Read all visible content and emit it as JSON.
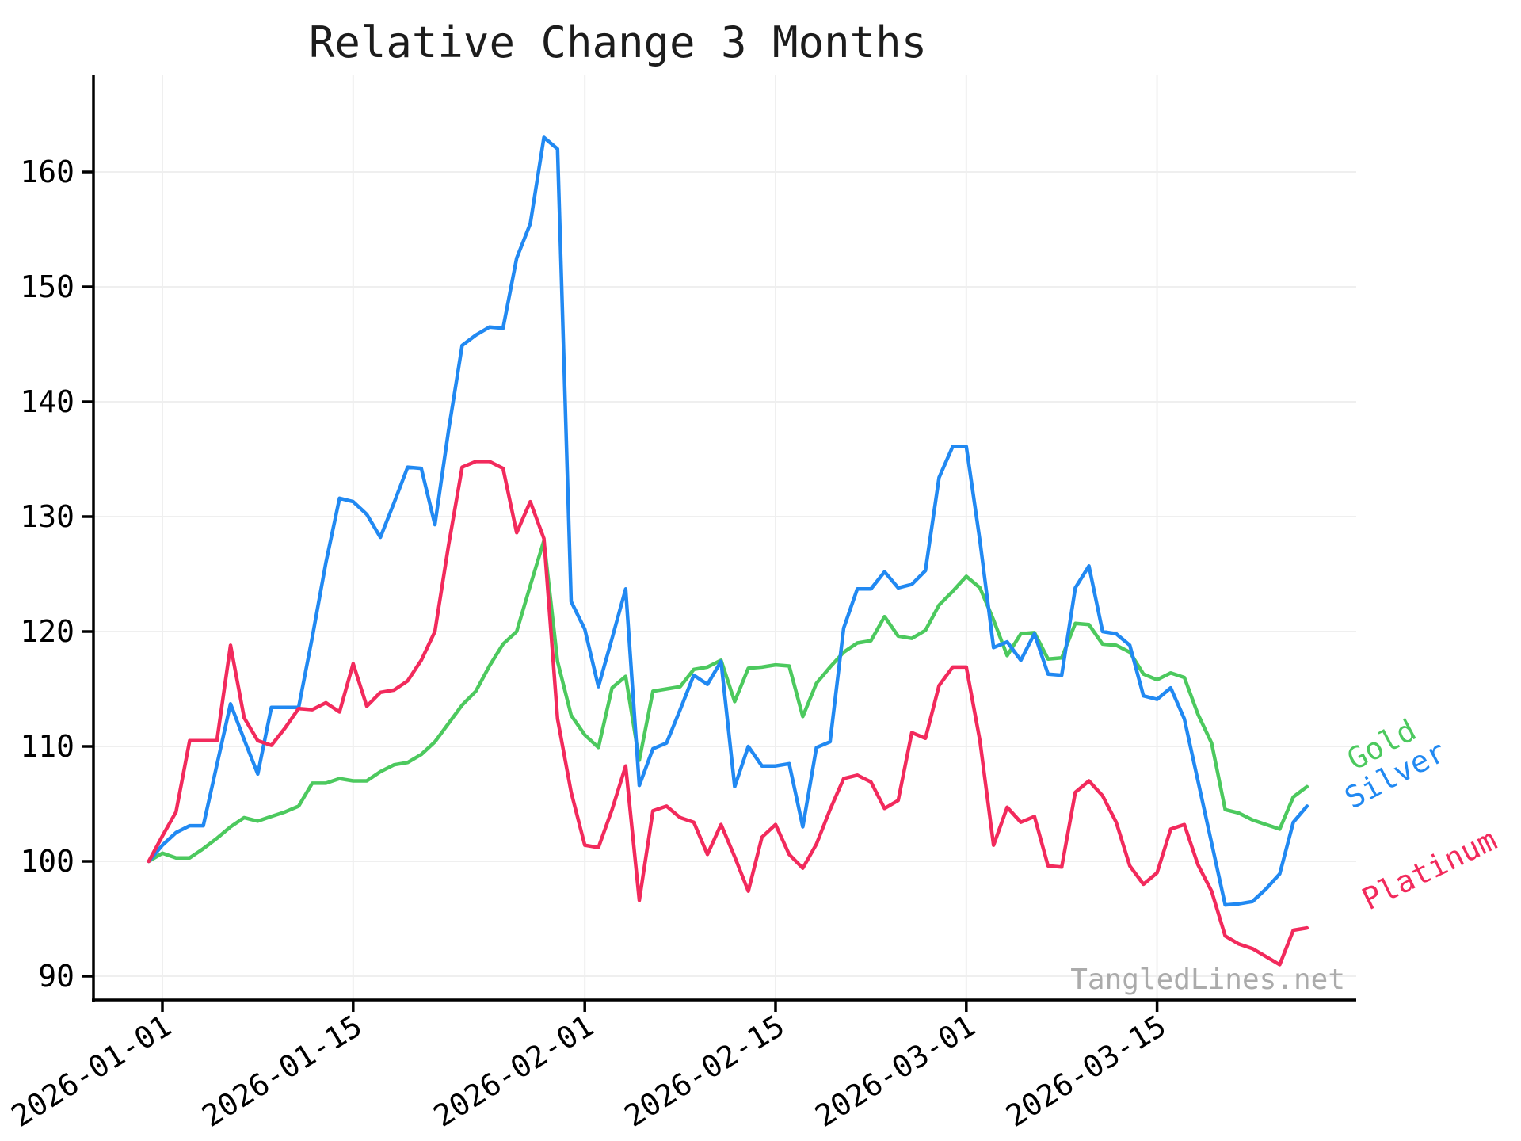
{
  "chart_data": {
    "type": "line",
    "title": "Relative Change 3 Months",
    "watermark": "TangledLines.net",
    "xlabel": "",
    "ylabel": "",
    "grid": true,
    "legend_position": "line-end-labels",
    "ylim": [
      86,
      166
    ],
    "y_ticks": [
      90,
      100,
      110,
      120,
      130,
      140,
      150,
      160
    ],
    "x_ticks": [
      {
        "label": "2026-01-01",
        "index": 1
      },
      {
        "label": "2026-01-15",
        "index": 15
      },
      {
        "label": "2026-02-01",
        "index": 32
      },
      {
        "label": "2026-02-15",
        "index": 46
      },
      {
        "label": "2026-03-01",
        "index": 60
      },
      {
        "label": "2026-03-15",
        "index": 74
      }
    ],
    "series": [
      {
        "name": "Gold",
        "color": "#4cc95e",
        "values": [
          100,
          100.7,
          100.3,
          100.3,
          101.1,
          102,
          103,
          103.8,
          103.5,
          103.9,
          104.3,
          104.8,
          106.8,
          106.8,
          107.2,
          107,
          107,
          107.8,
          108.4,
          108.6,
          109.3,
          110.4,
          112,
          113.6,
          114.8,
          117,
          118.9,
          120,
          124,
          127.9,
          117.4,
          112.7,
          111,
          109.9,
          115.1,
          116.1,
          108.8,
          114.8,
          115,
          115.2,
          116.7,
          116.9,
          117.5,
          113.9,
          116.8,
          116.9,
          117.1,
          117,
          112.6,
          115.5,
          116.9,
          118.2,
          119,
          119.2,
          121.3,
          119.6,
          119.4,
          120.1,
          122.3,
          123.5,
          124.8,
          123.8,
          121,
          117.9,
          119.8,
          119.9,
          117.6,
          117.7,
          120.7,
          120.6,
          118.9,
          118.8,
          118.2,
          116.3,
          115.8,
          116.4,
          116,
          112.8,
          110.3,
          104.5,
          104.2,
          103.6,
          103.2,
          102.8,
          105.6,
          106.5
        ]
      },
      {
        "name": "Silver",
        "color": "#2189f2",
        "values": [
          100,
          101.4,
          102.5,
          103.1,
          103.1,
          108.4,
          113.7,
          110.6,
          107.6,
          113.4,
          113.4,
          113.4,
          119.5,
          126,
          131.6,
          131.3,
          130.2,
          128.2,
          131.2,
          134.3,
          134.2,
          129.3,
          137.5,
          144.9,
          145.8,
          146.5,
          146.4,
          152.5,
          155.5,
          163,
          162,
          122.6,
          120.2,
          115.2,
          119.4,
          123.7,
          106.6,
          109.8,
          110.3,
          113.2,
          116.2,
          115.4,
          117.4,
          106.5,
          110,
          108.3,
          108.3,
          108.5,
          103,
          109.9,
          110.4,
          120.3,
          123.7,
          123.7,
          125.2,
          123.8,
          124.1,
          125.3,
          133.4,
          136.1,
          136.1,
          127.9,
          118.6,
          119.1,
          117.5,
          119.8,
          116.3,
          116.2,
          123.8,
          125.7,
          120,
          119.8,
          118.8,
          114.4,
          114.1,
          115.1,
          112.4,
          107,
          101.6,
          96.2,
          96.3,
          96.5,
          97.6,
          98.9,
          103.4,
          104.8
        ]
      },
      {
        "name": "Platinum",
        "color": "#f22a5c",
        "values": [
          100,
          102.2,
          104.3,
          110.5,
          110.5,
          110.5,
          118.8,
          112.5,
          110.5,
          110.1,
          111.6,
          113.3,
          113.2,
          113.8,
          113,
          117.2,
          113.5,
          114.7,
          114.9,
          115.7,
          117.5,
          120,
          127.5,
          134.3,
          134.8,
          134.8,
          134.2,
          128.6,
          131.3,
          128.1,
          112.4,
          106,
          101.4,
          101.2,
          104.5,
          108.3,
          96.6,
          104.4,
          104.8,
          103.8,
          103.4,
          100.6,
          103.2,
          100.4,
          97.4,
          102.1,
          103.2,
          100.6,
          99.4,
          101.5,
          104.5,
          107.2,
          107.5,
          106.9,
          104.6,
          105.3,
          111.2,
          110.7,
          115.3,
          116.9,
          116.9,
          110.5,
          101.4,
          104.7,
          103.4,
          103.9,
          99.6,
          99.5,
          106,
          107,
          105.7,
          103.4,
          99.6,
          98,
          99,
          102.8,
          103.2,
          99.7,
          97.4,
          93.5,
          92.8,
          92.4,
          91.7,
          91,
          94,
          94.2
        ]
      }
    ]
  }
}
